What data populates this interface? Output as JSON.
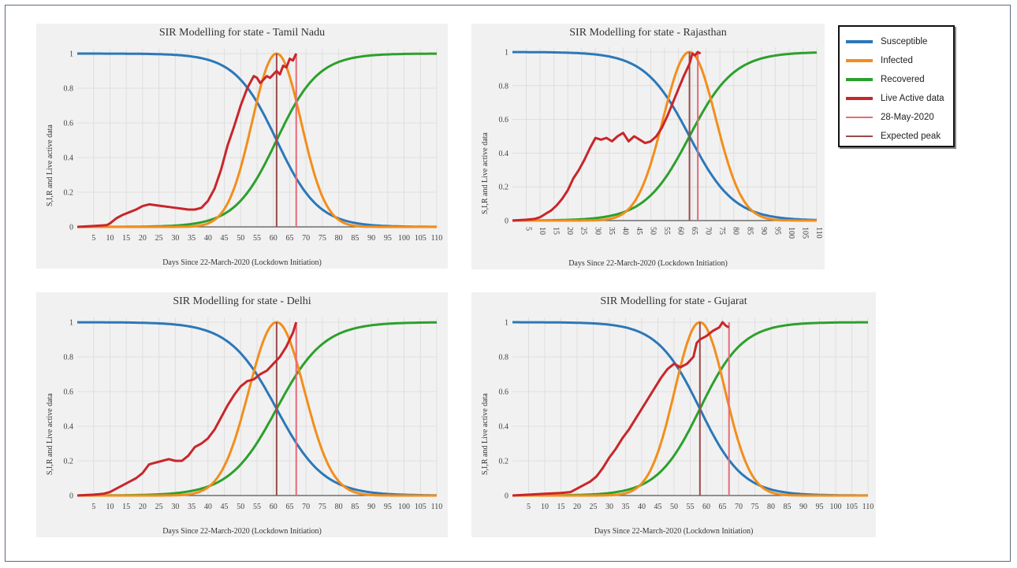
{
  "legend": {
    "items": [
      {
        "label": "Susceptible",
        "color": "#2c78b8"
      },
      {
        "label": "Infected",
        "color": "#f28e1c"
      },
      {
        "label": "Recovered",
        "color": "#2ca02c"
      },
      {
        "label": "Live Active data",
        "color": "#c8262a"
      },
      {
        "label": "28-May-2020",
        "color": "#e86a78"
      },
      {
        "label": "Expected peak",
        "color": "#9a4a4a"
      }
    ]
  },
  "chart_data": [
    {
      "type": "line",
      "title": "SIR Modelling for state -  Tamil Nadu",
      "xlabel": "Days Since 22-March-2020 (Lockdown Initiation)",
      "ylabel": "S,I,R and Live active data",
      "xlim": [
        0,
        110
      ],
      "ylim": [
        0,
        1
      ],
      "xticks": [
        5,
        10,
        15,
        20,
        25,
        30,
        35,
        40,
        45,
        50,
        55,
        60,
        65,
        70,
        75,
        80,
        85,
        90,
        95,
        100,
        105,
        110
      ],
      "yticks": [
        0,
        0.2,
        0.4,
        0.6,
        0.8,
        1
      ],
      "ytick_labels": [
        "0",
        "0.2",
        "0.4",
        "0.6",
        "0.8",
        "1"
      ],
      "sir": {
        "peak_day": 61,
        "width": 7.5,
        "recovered_mid": 61
      },
      "series": [
        {
          "x": [
            0,
            5,
            9,
            10,
            12,
            14,
            16,
            18,
            20,
            22,
            24,
            26,
            28,
            30,
            32,
            34,
            36,
            38,
            40,
            42,
            44,
            46,
            48,
            50,
            52,
            54,
            55,
            56,
            57,
            58,
            59,
            60,
            61,
            62,
            63,
            64,
            65,
            66,
            67
          ],
          "values": [
            0,
            0.005,
            0.01,
            0.02,
            0.05,
            0.07,
            0.085,
            0.1,
            0.12,
            0.13,
            0.125,
            0.12,
            0.115,
            0.11,
            0.105,
            0.1,
            0.1,
            0.11,
            0.15,
            0.22,
            0.33,
            0.47,
            0.58,
            0.7,
            0.8,
            0.87,
            0.86,
            0.83,
            0.85,
            0.87,
            0.86,
            0.88,
            0.9,
            0.88,
            0.93,
            0.92,
            0.97,
            0.96,
            1.0
          ]
        }
      ],
      "markers": {
        "expected_peak": 61,
        "date_line": 67
      }
    },
    {
      "type": "line",
      "title": "SIR Modelling for state -  Rajasthan",
      "xlabel": "Days Since 22-March-2020 (Lockdown Initiation)",
      "ylabel": "S,I,R and Live active data",
      "xlim": [
        0,
        110
      ],
      "ylim": [
        0,
        1
      ],
      "xticks": [
        5,
        10,
        15,
        20,
        25,
        30,
        35,
        40,
        45,
        50,
        55,
        60,
        65,
        70,
        75,
        80,
        85,
        90,
        95,
        100,
        105,
        110
      ],
      "yticks": [
        0,
        0.2,
        0.4,
        0.6,
        0.8,
        1
      ],
      "ytick_labels": [
        "0",
        "0.2",
        "0.4",
        "0.6",
        "0.8",
        "1"
      ],
      "sir": {
        "peak_day": 64,
        "width": 9.5,
        "recovered_mid": 64
      },
      "series": [
        {
          "x": [
            0,
            5,
            8,
            10,
            12,
            14,
            16,
            18,
            20,
            22,
            24,
            26,
            28,
            30,
            32,
            34,
            36,
            38,
            40,
            42,
            44,
            46,
            48,
            50,
            52,
            54,
            56,
            58,
            60,
            62,
            64,
            65,
            66,
            67,
            68
          ],
          "values": [
            0,
            0.005,
            0.01,
            0.02,
            0.04,
            0.06,
            0.09,
            0.13,
            0.18,
            0.25,
            0.3,
            0.36,
            0.43,
            0.49,
            0.48,
            0.49,
            0.47,
            0.5,
            0.52,
            0.47,
            0.5,
            0.48,
            0.46,
            0.47,
            0.5,
            0.55,
            0.62,
            0.7,
            0.78,
            0.86,
            0.93,
            0.99,
            0.98,
            1.0,
            0.99
          ]
        }
      ],
      "markers": {
        "expected_peak": 64,
        "date_line": 67
      }
    },
    {
      "type": "line",
      "title": "SIR Modelling for state -  Delhi",
      "xlabel": "Days Since 22-March-2020 (Lockdown Initiation)",
      "ylabel": "S,I,R and Live active data",
      "xlim": [
        0,
        110
      ],
      "ylim": [
        0,
        1
      ],
      "xticks": [
        5,
        10,
        15,
        20,
        25,
        30,
        35,
        40,
        45,
        50,
        55,
        60,
        65,
        70,
        75,
        80,
        85,
        90,
        95,
        100,
        105,
        110
      ],
      "yticks": [
        0,
        0.2,
        0.4,
        0.6,
        0.8,
        1
      ],
      "ytick_labels": [
        "0",
        "0.2",
        "0.4",
        "0.6",
        "0.8",
        "1"
      ],
      "sir": {
        "peak_day": 61,
        "width": 8.5,
        "recovered_mid": 61
      },
      "series": [
        {
          "x": [
            0,
            5,
            8,
            10,
            12,
            14,
            16,
            18,
            20,
            22,
            24,
            26,
            28,
            30,
            32,
            34,
            36,
            38,
            40,
            42,
            44,
            46,
            48,
            50,
            52,
            54,
            56,
            58,
            60,
            62,
            64,
            66,
            67
          ],
          "values": [
            0,
            0.005,
            0.01,
            0.02,
            0.04,
            0.06,
            0.08,
            0.1,
            0.13,
            0.18,
            0.19,
            0.2,
            0.21,
            0.2,
            0.2,
            0.23,
            0.28,
            0.3,
            0.33,
            0.38,
            0.45,
            0.52,
            0.58,
            0.63,
            0.66,
            0.67,
            0.7,
            0.72,
            0.76,
            0.8,
            0.86,
            0.94,
            1.0
          ]
        }
      ],
      "markers": {
        "expected_peak": 61,
        "date_line": 67
      }
    },
    {
      "type": "line",
      "title": "SIR Modelling for state -  Gujarat",
      "xlabel": "Days Since 22-March-2020 (Lockdown Initiation)",
      "ylabel": "S,I,R and Live active data",
      "xlim": [
        0,
        110
      ],
      "ylim": [
        0,
        1
      ],
      "xticks": [
        5,
        10,
        15,
        20,
        25,
        30,
        35,
        40,
        45,
        50,
        55,
        60,
        65,
        70,
        75,
        80,
        85,
        90,
        95,
        100,
        105,
        110
      ],
      "yticks": [
        0,
        0.2,
        0.4,
        0.6,
        0.8,
        1
      ],
      "ytick_labels": [
        "0",
        "0.2",
        "0.4",
        "0.6",
        "0.8",
        "1"
      ],
      "sir": {
        "peak_day": 58,
        "width": 7.8,
        "recovered_mid": 58
      },
      "series": [
        {
          "x": [
            0,
            5,
            10,
            15,
            18,
            20,
            22,
            24,
            26,
            28,
            30,
            32,
            34,
            36,
            38,
            40,
            42,
            44,
            46,
            48,
            50,
            52,
            54,
            56,
            57,
            58,
            60,
            62,
            64,
            65,
            66,
            67
          ],
          "values": [
            0,
            0.005,
            0.01,
            0.015,
            0.02,
            0.04,
            0.06,
            0.08,
            0.11,
            0.16,
            0.22,
            0.27,
            0.33,
            0.38,
            0.44,
            0.5,
            0.56,
            0.62,
            0.68,
            0.73,
            0.76,
            0.74,
            0.76,
            0.8,
            0.88,
            0.9,
            0.92,
            0.95,
            0.97,
            1.0,
            0.98,
            0.97
          ]
        }
      ],
      "markers": {
        "expected_peak": 58,
        "date_line": 67
      }
    }
  ]
}
